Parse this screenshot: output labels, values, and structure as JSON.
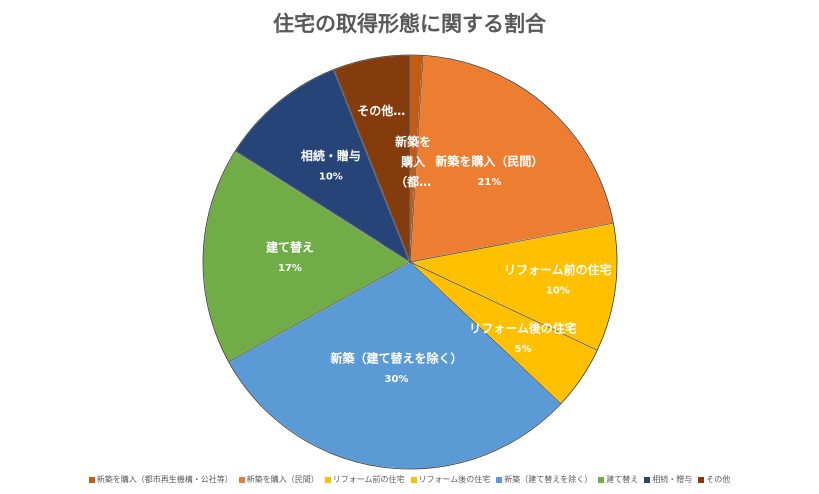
{
  "chart_data": {
    "type": "pie",
    "title": "住宅の取得形態に関する割合",
    "slices": [
      {
        "name": "新築を購入（都市再生機構・公社等）",
        "value": 1,
        "color": "#C55A11",
        "label_lines": [
          "新築を",
          "購入",
          "（都…"
        ],
        "value_label": ""
      },
      {
        "name": "新築を購入（民間）",
        "value": 21,
        "color": "#ED7D31",
        "label_lines": [
          "新築を購入（民間）"
        ],
        "value_label": "21%"
      },
      {
        "name": "リフォーム前の住宅",
        "value": 10,
        "color": "#FFC000",
        "label_lines": [
          "リフォーム前の住宅"
        ],
        "value_label": "10%"
      },
      {
        "name": "リフォーム後の住宅",
        "value": 5,
        "color": "#FFC000",
        "label_lines": [
          "リフォーム後の住宅"
        ],
        "value_label": "5%"
      },
      {
        "name": "新築（建て替えを除く）",
        "value": 30,
        "color": "#5B9BD5",
        "label_lines": [
          "新築（建て替えを除く）"
        ],
        "value_label": "30%"
      },
      {
        "name": "建て替え",
        "value": 17,
        "color": "#70AD47",
        "label_lines": [
          "建て替え"
        ],
        "value_label": "17%"
      },
      {
        "name": "相続・贈与",
        "value": 10,
        "color": "#264478",
        "label_lines": [
          "相続・贈与"
        ],
        "value_label": "10%"
      },
      {
        "name": "その他",
        "value": 6,
        "color": "#843C0C",
        "label_lines": [
          "その他…"
        ],
        "value_label": ""
      }
    ],
    "legend_position": "bottom"
  }
}
